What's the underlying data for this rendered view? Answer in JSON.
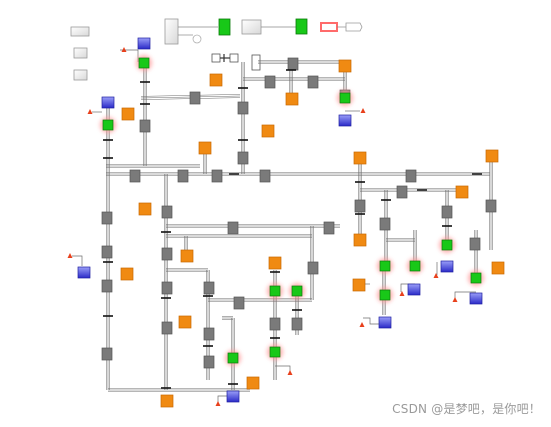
{
  "watermark": "CSDN @是梦吧，是你吧！",
  "colors": {
    "gray_block": "#7a7a7a",
    "orange_block": "#f08a12",
    "green_block": "#18c818",
    "green_glow": "#ff9a9a",
    "blue_block": "#3a3ad8",
    "source_red": "#e8401c",
    "wire": "#6e6e6e",
    "light_block": "#f0f0f0"
  }
}
